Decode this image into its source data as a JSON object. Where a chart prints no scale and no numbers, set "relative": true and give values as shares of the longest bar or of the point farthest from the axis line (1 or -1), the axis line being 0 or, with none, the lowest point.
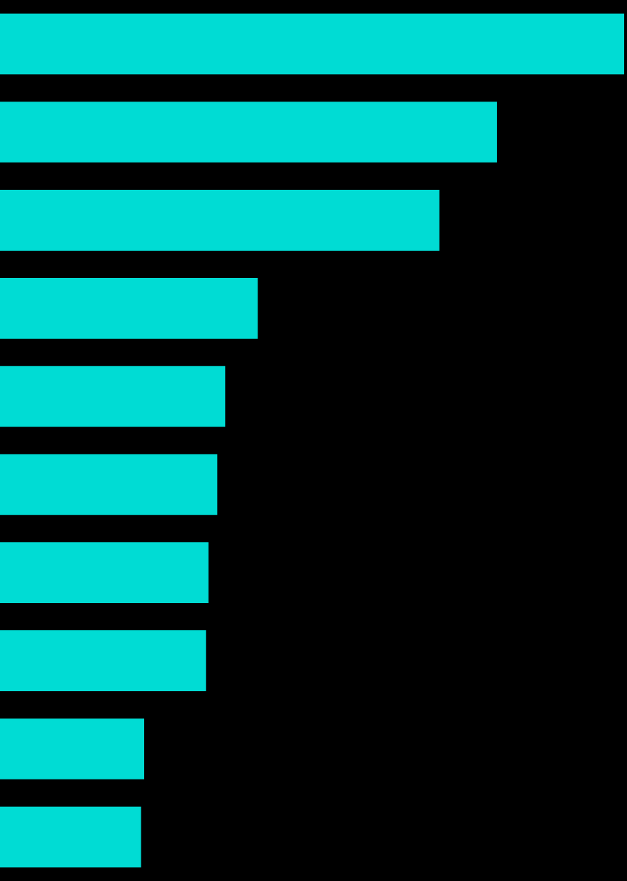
{
  "chart_data": {
    "type": "bar",
    "orientation": "horizontal",
    "relative": true,
    "categories": [
      null,
      null,
      null,
      null,
      null,
      null,
      null,
      null,
      null,
      null
    ],
    "values": [
      1,
      0.796,
      0.704,
      0.413,
      0.361,
      0.348,
      0.334,
      0.33,
      0.231,
      0.226
    ],
    "color": "#00dcd4",
    "legend": false
  }
}
